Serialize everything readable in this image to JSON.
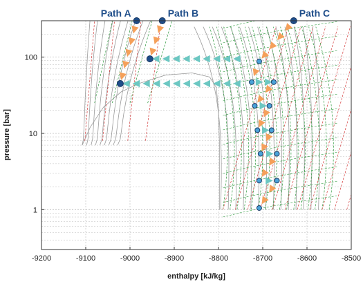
{
  "chart_data": {
    "type": "scatter",
    "title": "",
    "xlabel": "enthalpy [kJ/kg]",
    "ylabel": "pressure [bar]",
    "xlim": [
      -9200,
      -8500
    ],
    "ylim": [
      0.3,
      300
    ],
    "y_scale": "log",
    "grid": true,
    "x_ticks": [
      "-9200",
      "-9100",
      "-9000",
      "-8900",
      "-8800",
      "-8700",
      "-8600",
      "-8500"
    ],
    "y_ticks": [
      {
        "value": 1,
        "label": "1"
      },
      {
        "value": 10,
        "label": "10"
      },
      {
        "value": 100,
        "label": "100"
      }
    ],
    "colors": {
      "grid": "#bbbbbb",
      "envelope": "#9a9a9a",
      "isotherm_green": "#2e9a3e",
      "isentrope_red": "#d43a3a",
      "orange_arrow": "#f5a05a",
      "teal_arrow": "#6cc7c2",
      "point_dark": "#1f4e8a",
      "point_light": "#4aa3d8",
      "path_label": "#1f4e8a"
    },
    "path_labels": [
      {
        "label": "Path A",
        "x": -8985,
        "y": 300
      },
      {
        "label": "Path B",
        "x": -8927,
        "y": 300
      },
      {
        "label": "Path C",
        "x": -8630,
        "y": 300
      }
    ],
    "series": [
      {
        "name": "Path A",
        "points": [
          {
            "x": -8985,
            "y": 300
          },
          {
            "x": -9022,
            "y": 45
          }
        ]
      },
      {
        "name": "Path B",
        "points": [
          {
            "x": -8927,
            "y": 300
          },
          {
            "x": -8955,
            "y": 95
          }
        ]
      },
      {
        "name": "Path C",
        "points": [
          {
            "x": -8630,
            "y": 300
          },
          {
            "x": -8708,
            "y": 88
          },
          {
            "x": -8725,
            "y": 47
          },
          {
            "x": -8675,
            "y": 47
          },
          {
            "x": -8718,
            "y": 23
          },
          {
            "x": -8685,
            "y": 23
          },
          {
            "x": -8712,
            "y": 11
          },
          {
            "x": -8680,
            "y": 11
          },
          {
            "x": -8705,
            "y": 5.4
          },
          {
            "x": -8668,
            "y": 5.4
          },
          {
            "x": -8708,
            "y": 2.4
          },
          {
            "x": -8668,
            "y": 2.4
          },
          {
            "x": -8708,
            "y": 1.05
          }
        ]
      }
    ]
  }
}
